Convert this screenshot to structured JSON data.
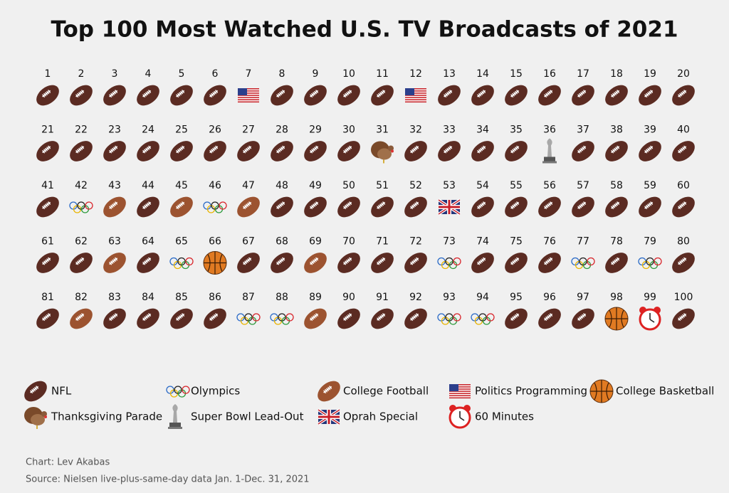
{
  "title": "Top 100 Most Watched U.S. TV Broadcasts of 2021",
  "legend": [
    {
      "label": "NFL",
      "ranks": [
        1,
        2,
        3,
        4,
        5,
        6,
        8,
        9,
        10,
        11,
        13,
        14,
        15,
        16,
        17,
        18,
        19,
        20,
        21,
        22,
        23,
        24,
        25,
        26,
        27,
        28,
        29,
        30,
        32,
        33,
        34,
        35,
        37,
        38,
        39,
        40,
        41,
        44,
        48,
        49,
        50,
        51,
        52,
        54,
        55,
        56,
        57,
        58,
        59,
        60,
        61,
        62,
        64,
        67,
        68,
        70,
        71,
        72,
        74,
        75,
        76,
        78,
        80,
        81,
        83,
        84,
        85,
        86,
        90,
        91,
        92,
        95,
        96,
        97,
        100
      ]
    },
    {
      "label": "Olympics",
      "ranks": [
        42,
        46,
        65,
        73,
        77,
        79,
        87,
        88,
        93,
        94
      ]
    },
    {
      "label": "College Football",
      "ranks": [
        43,
        45,
        47,
        63,
        69,
        82,
        89
      ]
    },
    {
      "label": "Politics Programming",
      "ranks": [
        7,
        12
      ]
    },
    {
      "label": "College Basketball",
      "ranks": [
        66,
        98
      ]
    },
    {
      "label": "Thanksgiving Parade",
      "ranks": [
        31
      ]
    },
    {
      "label": "Super Bowl Lead-Out",
      "ranks": [
        36
      ]
    },
    {
      "label": "Oprah Special",
      "ranks": [
        53
      ]
    },
    {
      "label": "60 Minutes",
      "ranks": [
        99
      ]
    }
  ],
  "credit": "Chart: Lev Akabas",
  "source": "Source: Nielsen live-plus-same-day data Jan. 1-Dec. 31, 2021"
}
